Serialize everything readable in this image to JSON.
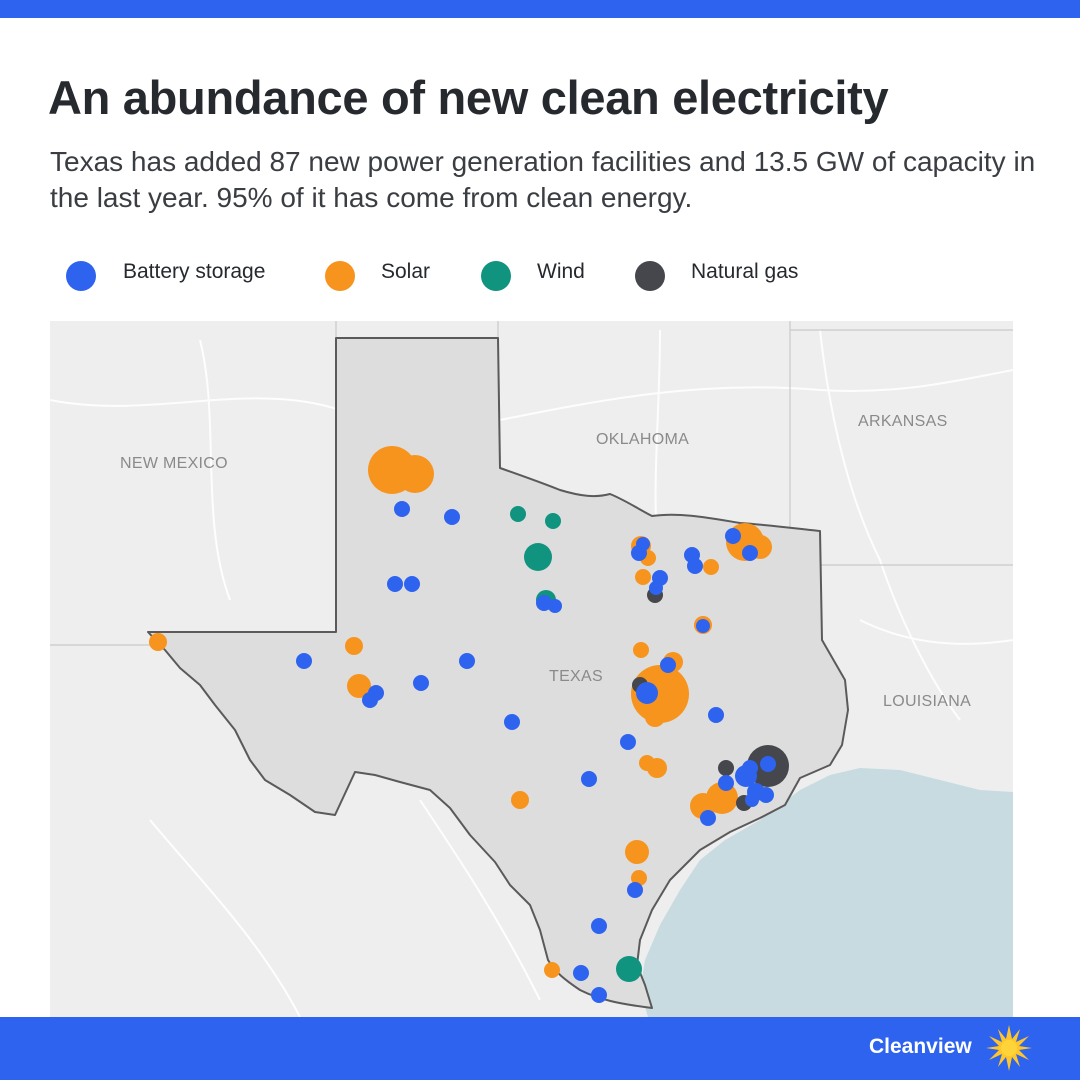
{
  "header": {
    "title": "An abundance of new clean electricity",
    "subtitle": "Texas has added 87 new power generation facilities and 13.5 GW of capacity in the last year. 95% of it has come from clean energy."
  },
  "legend": [
    {
      "label": "Battery storage",
      "color": "#2e63f0"
    },
    {
      "label": "Solar",
      "color": "#f7941d"
    },
    {
      "label": "Wind",
      "color": "#10937f"
    },
    {
      "label": "Natural gas",
      "color": "#45474d"
    }
  ],
  "map": {
    "labels": {
      "new_mexico": "NEW MEXICO",
      "oklahoma": "OKLAHOMA",
      "arkansas": "ARKANSAS",
      "texas": "TEXAS",
      "louisiana": "LOUISIANA"
    },
    "colors": {
      "land": "#eeeeee",
      "state_fill": "#dddddd",
      "state_outline": "#5a5a5a",
      "water": "#c8dbe0",
      "roads": "#ffffff"
    }
  },
  "footer": {
    "brand": "Cleanview",
    "brand_icon": "sun-burst-icon"
  }
}
